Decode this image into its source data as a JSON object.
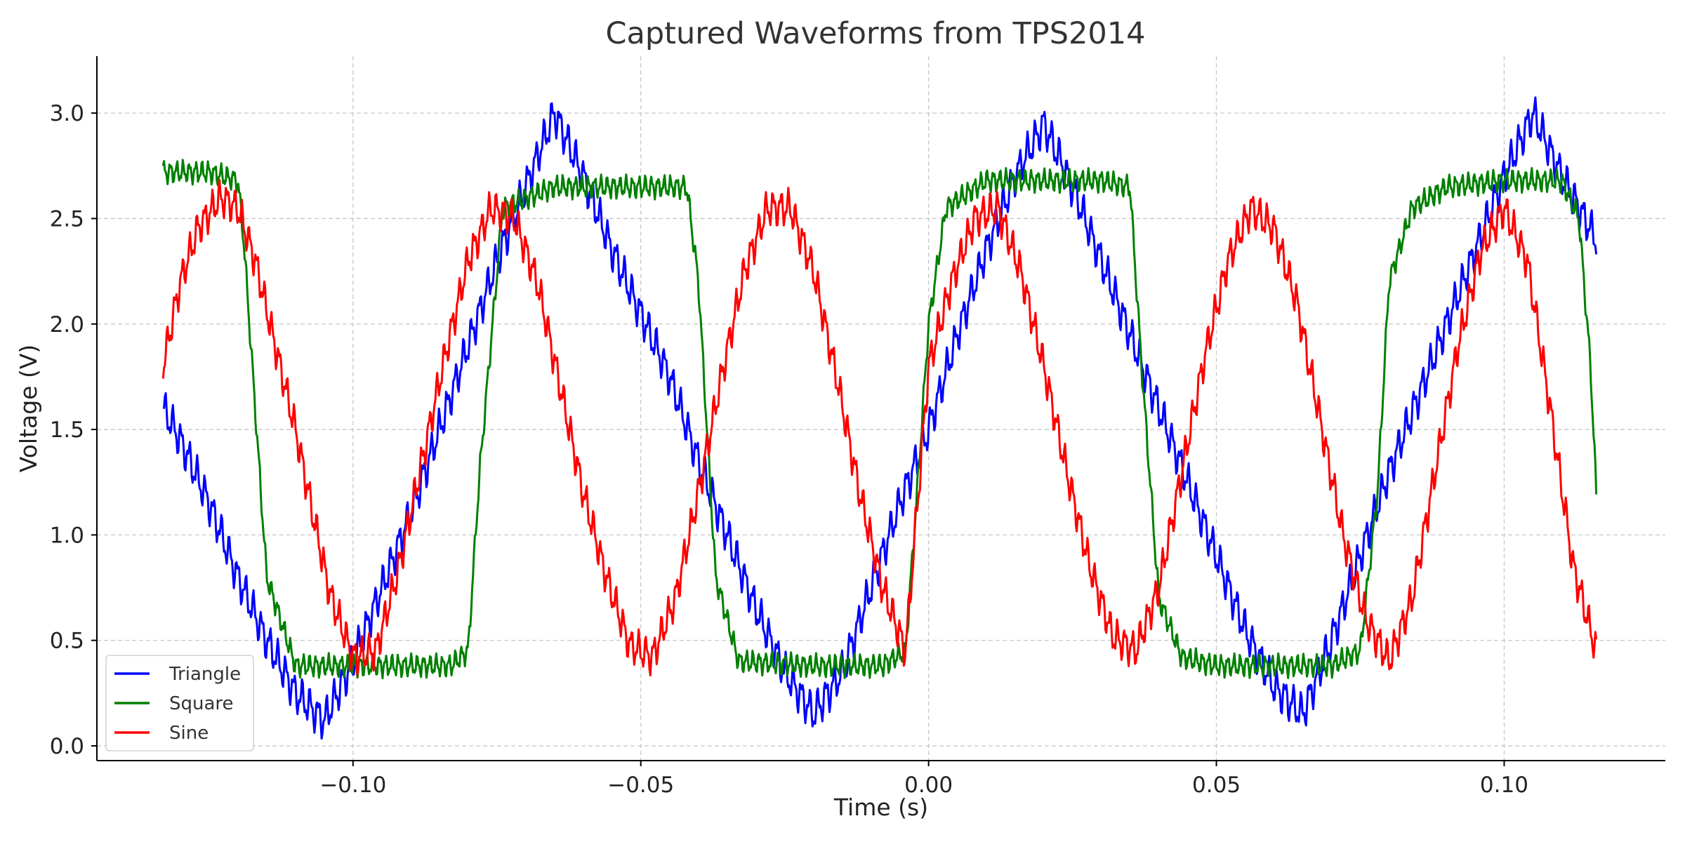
{
  "chart_data": {
    "type": "line",
    "title": "Captured Waveforms from TPS2014",
    "xlabel": "Time (s)",
    "ylabel": "Voltage (V)",
    "xlim": [
      -0.1445,
      0.128
    ],
    "ylim": [
      -0.07,
      3.27
    ],
    "xticks": [
      -0.1,
      -0.05,
      0.0,
      0.05,
      0.1
    ],
    "xtick_labels": [
      "−0.10",
      "−0.05",
      "0.00",
      "0.05",
      "0.10"
    ],
    "yticks": [
      0.0,
      0.5,
      1.0,
      1.5,
      2.0,
      2.5,
      3.0
    ],
    "ytick_labels": [
      "0.0",
      "0.5",
      "1.0",
      "1.5",
      "2.0",
      "2.5",
      "3.0"
    ],
    "grid": true,
    "legend_position": "lower-left",
    "series": [
      {
        "name": "Triangle",
        "color": "#0000ff",
        "x": [
          -0.133,
          -0.13,
          -0.125,
          -0.12,
          -0.115,
          -0.11,
          -0.105,
          -0.1,
          -0.095,
          -0.09,
          -0.085,
          -0.08,
          -0.075,
          -0.07,
          -0.065,
          -0.06,
          -0.055,
          -0.05,
          -0.045,
          -0.04,
          -0.035,
          -0.03,
          -0.025,
          -0.02,
          -0.015,
          -0.01,
          -0.005,
          0.0,
          0.005,
          0.01,
          0.015,
          0.02,
          0.025,
          0.03,
          0.035,
          0.04,
          0.045,
          0.05,
          0.055,
          0.06,
          0.065,
          0.07,
          0.075,
          0.08,
          0.085,
          0.09,
          0.095,
          0.1,
          0.105,
          0.11,
          0.116
        ],
        "y": [
          1.6,
          1.45,
          1.15,
          0.8,
          0.5,
          0.25,
          0.12,
          0.4,
          0.75,
          1.1,
          1.5,
          1.9,
          2.3,
          2.65,
          3.0,
          2.7,
          2.35,
          2.05,
          1.75,
          1.35,
          1.0,
          0.65,
          0.35,
          0.15,
          0.35,
          0.75,
          1.15,
          1.5,
          1.95,
          2.35,
          2.7,
          2.95,
          2.65,
          2.3,
          1.95,
          1.6,
          1.25,
          0.9,
          0.55,
          0.28,
          0.15,
          0.5,
          0.9,
          1.3,
          1.65,
          2.0,
          2.35,
          2.7,
          3.0,
          2.7,
          2.4
        ]
      },
      {
        "name": "Square",
        "color": "#008000",
        "x": [
          -0.133,
          -0.125,
          -0.12,
          -0.119,
          -0.115,
          -0.11,
          -0.1,
          -0.09,
          -0.083,
          -0.08,
          -0.078,
          -0.074,
          -0.065,
          -0.05,
          -0.042,
          -0.04,
          -0.037,
          -0.033,
          -0.02,
          -0.008,
          -0.004,
          -0.002,
          0.0,
          0.003,
          0.01,
          0.02,
          0.03,
          0.035,
          0.037,
          0.04,
          0.044,
          0.05,
          0.06,
          0.07,
          0.075,
          0.078,
          0.08,
          0.084,
          0.09,
          0.1,
          0.11,
          0.113,
          0.115,
          0.116
        ],
        "y": [
          2.72,
          2.72,
          2.68,
          2.4,
          0.8,
          0.38,
          0.38,
          0.38,
          0.38,
          0.45,
          1.3,
          2.55,
          2.65,
          2.65,
          2.65,
          2.2,
          0.8,
          0.4,
          0.38,
          0.38,
          0.45,
          1.2,
          2.0,
          2.55,
          2.68,
          2.68,
          2.68,
          2.65,
          1.8,
          0.7,
          0.42,
          0.38,
          0.38,
          0.38,
          0.45,
          1.2,
          2.2,
          2.55,
          2.65,
          2.68,
          2.68,
          2.5,
          1.8,
          1.2
        ]
      },
      {
        "name": "Sine",
        "color": "#ff0000",
        "x": [
          -0.133,
          -0.13,
          -0.127,
          -0.123,
          -0.12,
          -0.117,
          -0.114,
          -0.11,
          -0.107,
          -0.104,
          -0.1,
          -0.096,
          -0.092,
          -0.088,
          -0.084,
          -0.08,
          -0.076,
          -0.072,
          -0.068,
          -0.064,
          -0.06,
          -0.056,
          -0.052,
          -0.048,
          -0.044,
          -0.04,
          -0.036,
          -0.032,
          -0.028,
          -0.024,
          -0.02,
          -0.016,
          -0.012,
          -0.008,
          -0.004,
          0.0,
          0.004,
          0.008,
          0.012,
          0.016,
          0.02,
          0.024,
          0.028,
          0.032,
          0.036,
          0.04,
          0.044,
          0.048,
          0.052,
          0.056,
          0.06,
          0.064,
          0.068,
          0.072,
          0.076,
          0.08,
          0.084,
          0.088,
          0.092,
          0.096,
          0.1,
          0.104,
          0.108,
          0.112,
          0.116
        ],
        "y": [
          1.8,
          2.2,
          2.45,
          2.6,
          2.55,
          2.3,
          1.95,
          1.5,
          1.1,
          0.72,
          0.42,
          0.45,
          0.85,
          1.35,
          1.85,
          2.3,
          2.55,
          2.5,
          2.2,
          1.7,
          1.2,
          0.8,
          0.48,
          0.42,
          0.7,
          1.2,
          1.75,
          2.25,
          2.55,
          2.55,
          2.25,
          1.75,
          1.2,
          0.75,
          0.45,
          1.8,
          2.2,
          2.5,
          2.55,
          2.25,
          1.8,
          1.3,
          0.85,
          0.52,
          0.45,
          0.75,
          1.3,
          1.85,
          2.3,
          2.55,
          2.45,
          2.1,
          1.55,
          1.0,
          0.6,
          0.4,
          0.7,
          1.3,
          1.9,
          2.35,
          2.55,
          2.3,
          1.6,
          0.85,
          0.45
        ]
      }
    ]
  }
}
